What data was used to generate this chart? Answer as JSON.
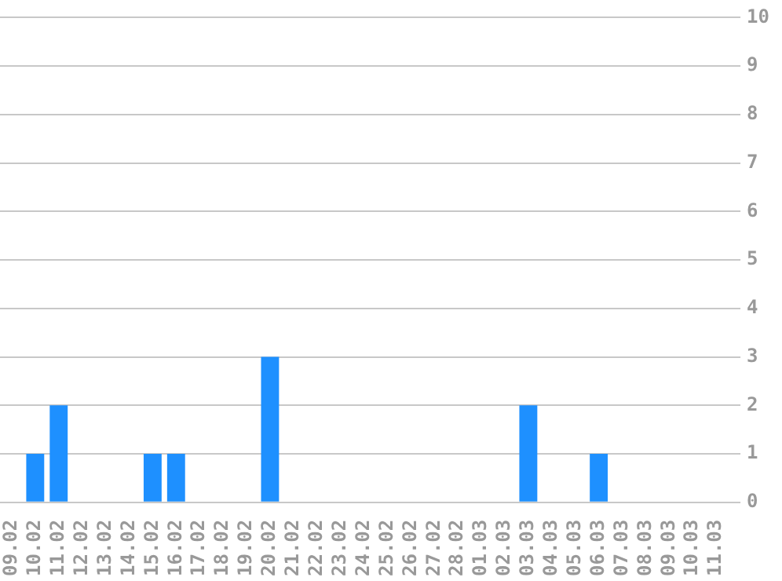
{
  "chart_data": {
    "type": "bar",
    "categories": [
      "09.02",
      "10.02",
      "11.02",
      "12.02",
      "13.02",
      "14.02",
      "15.02",
      "16.02",
      "17.02",
      "18.02",
      "19.02",
      "20.02",
      "21.02",
      "22.02",
      "23.02",
      "24.02",
      "25.02",
      "26.02",
      "27.02",
      "28.02",
      "01.03",
      "02.03",
      "03.03",
      "04.03",
      "05.03",
      "06.03",
      "07.03",
      "08.03",
      "09.03",
      "10.03",
      "11.03"
    ],
    "values": [
      0,
      1,
      2,
      0,
      0,
      0,
      1,
      1,
      0,
      0,
      0,
      3,
      0,
      0,
      0,
      0,
      0,
      0,
      0,
      0,
      0,
      0,
      2,
      0,
      0,
      1,
      0,
      0,
      0,
      0,
      0
    ],
    "color": "#1e90ff",
    "ylim": [
      0,
      10
    ],
    "yticks": [
      0,
      1,
      2,
      3,
      4,
      5,
      6,
      7,
      8,
      9,
      10
    ],
    "grid": "y",
    "legend": false
  }
}
